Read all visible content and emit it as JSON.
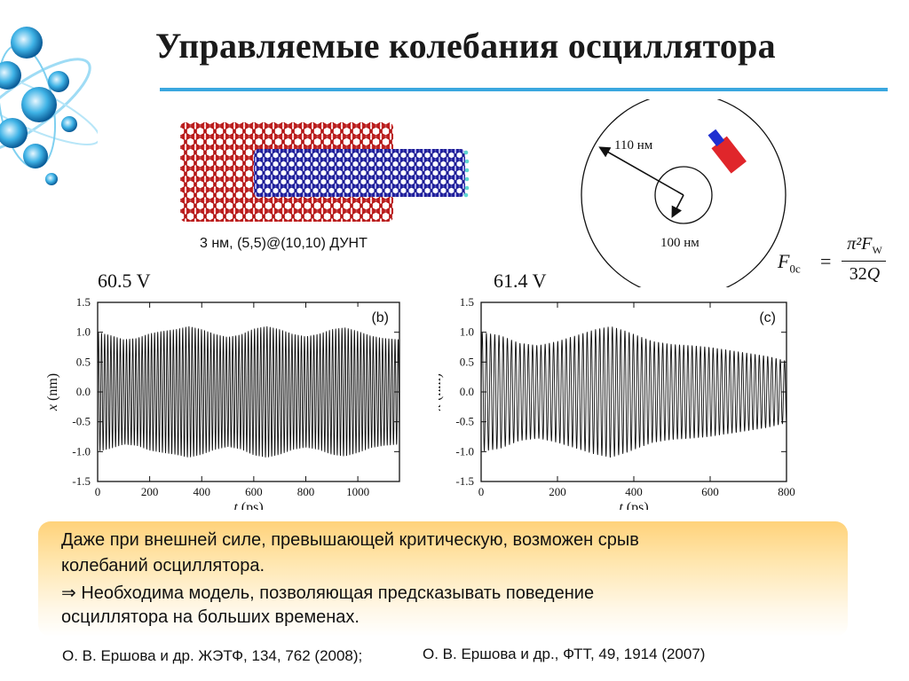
{
  "slide": {
    "title": "Управляемые колебания осциллятора"
  },
  "figure": {
    "nanotube_caption": "3 нм, (5,5)@(10,10) ДУНТ",
    "outer_radius_label": "110 нм",
    "inner_radius_label": "100 нм",
    "formula": {
      "lhs_symbol": "F",
      "lhs_subscript": "0c",
      "equals": "=",
      "numerator": "π²F_W",
      "denominator": "32Q"
    }
  },
  "colors": {
    "outer_tube": "#d42a2a",
    "inner_tube": "#2a2abf",
    "title_rule": "#3aa7df",
    "electrode_red": "#e0262b",
    "electrode_blue": "#1f2fd0"
  },
  "chart_data": [
    {
      "type": "line",
      "panel_label": "(b)",
      "voltage": "60.5 V",
      "xlabel_var": "t",
      "xlabel_unit": "(ps)",
      "ylabel_var": "x",
      "ylabel_unit": "(nm)",
      "xlim": [
        0,
        1160
      ],
      "ylim": [
        -1.5,
        1.5
      ],
      "xticks": [
        "0",
        "200",
        "400",
        "600",
        "800",
        "1000"
      ],
      "yticks": [
        "1.5",
        "1.0",
        "0.5",
        "0.0",
        "-0.5",
        "-1.0",
        "-1.5"
      ],
      "period_ps": 12,
      "envelope_t": [
        0,
        50,
        100,
        150,
        200,
        250,
        300,
        350,
        400,
        450,
        500,
        550,
        600,
        650,
        700,
        750,
        800,
        850,
        900,
        950,
        1000,
        1050,
        1100,
        1160
      ],
      "envelope_amp": [
        1.0,
        0.95,
        0.88,
        0.9,
        0.98,
        1.02,
        1.05,
        1.1,
        1.05,
        0.97,
        0.92,
        0.96,
        1.06,
        1.1,
        1.05,
        0.97,
        0.93,
        0.97,
        1.05,
        1.08,
        1.02,
        0.94,
        0.9,
        0.88
      ]
    },
    {
      "type": "line",
      "panel_label": "(c)",
      "voltage": "61.4 V",
      "xlabel_var": "t",
      "xlabel_unit": "(ps)",
      "ylabel_var": "x",
      "ylabel_unit": "(nm)",
      "xlim": [
        0,
        800
      ],
      "ylim": [
        -1.5,
        1.5
      ],
      "xticks": [
        "0",
        "200",
        "400",
        "600",
        "800"
      ],
      "yticks": [
        "1.5",
        "1.0",
        "0.5",
        "0.0",
        "-0.5",
        "-1.0",
        "-1.5"
      ],
      "period_ps": 11,
      "envelope_t": [
        0,
        50,
        100,
        150,
        200,
        250,
        300,
        340,
        380,
        420,
        450,
        500,
        550,
        600,
        650,
        700,
        750,
        800
      ],
      "envelope_amp": [
        1.0,
        0.95,
        0.82,
        0.78,
        0.85,
        0.95,
        1.05,
        1.1,
        1.02,
        0.92,
        0.85,
        0.8,
        0.78,
        0.75,
        0.7,
        0.65,
        0.6,
        0.52
      ]
    }
  ],
  "note": {
    "line1": "Даже при внешней силе, превышающей критическую, возможен срыв",
    "line2": "колебаний осциллятора.",
    "line3": "⇒ Необходима модель, позволяющая предсказывать поведение",
    "line4": "осциллятора на больших временах."
  },
  "references": {
    "ref1": "О. В. Ершова и др. ЖЭТФ, 134, 762 (2008);",
    "ref2": "О. В. Ершова и др., ФТТ, 49, 1914 (2007)"
  }
}
